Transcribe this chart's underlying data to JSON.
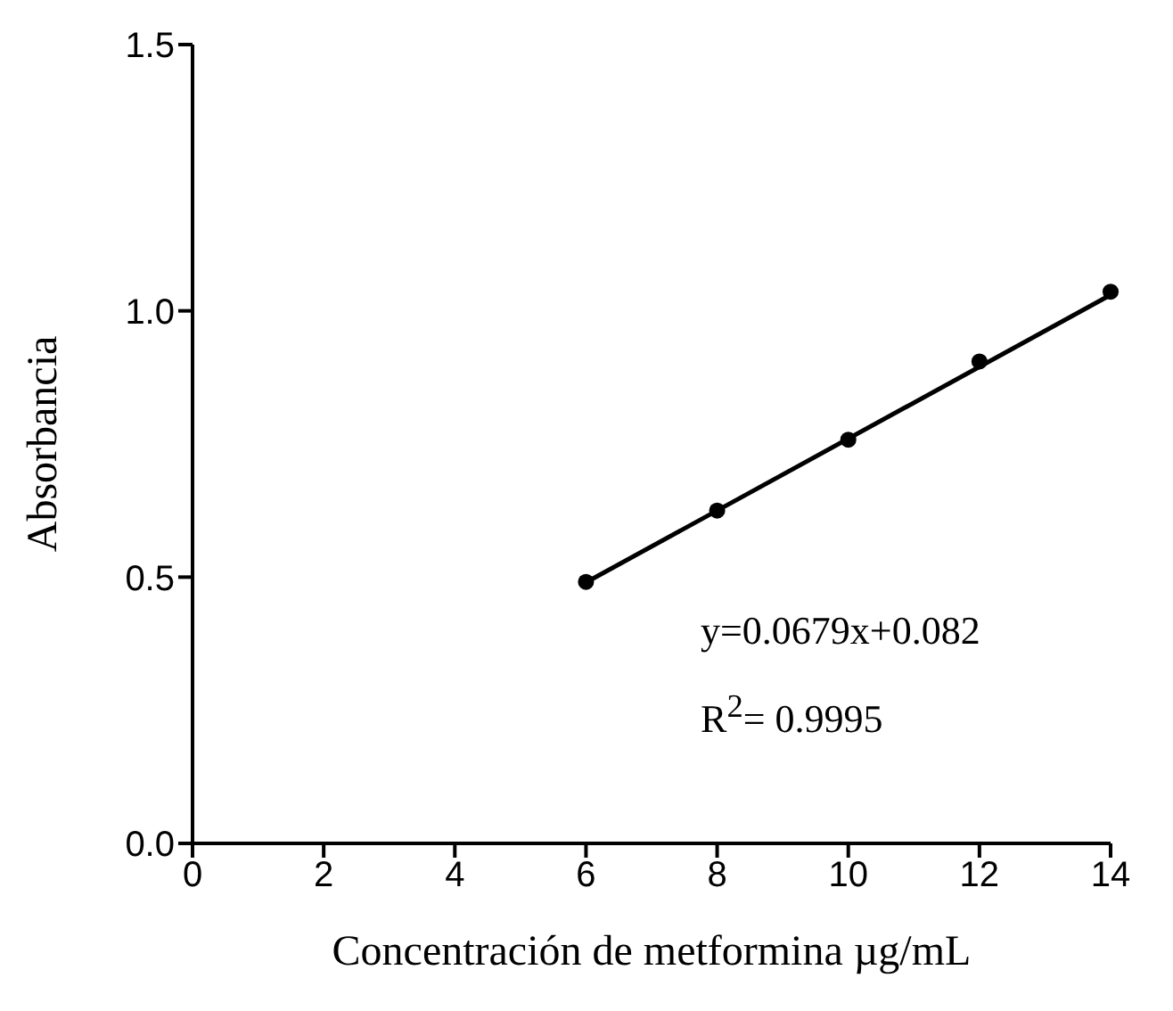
{
  "chart_data": {
    "type": "scatter",
    "xlabel": "Concentración de metformina µg/mL",
    "ylabel": "Absorbancia",
    "x": [
      6,
      8,
      10,
      12,
      14
    ],
    "series": [
      {
        "color": "#000000",
        "values": [
          0.491,
          0.625,
          0.758,
          0.905,
          1.036
        ],
        "marker": "circle"
      },
      {
        "type": "line",
        "color": "#000000",
        "x": [
          6,
          14
        ],
        "values": [
          0.49,
          1.03
        ],
        "marker": "none",
        "line_style": "solid"
      }
    ],
    "xlim": [
      0,
      14
    ],
    "xticks": [
      0,
      2,
      4,
      6,
      8,
      10,
      12,
      14
    ],
    "ylim": [
      0,
      1.5
    ],
    "yticks": [
      {
        "value": 0,
        "label": "0.0"
      },
      {
        "value": 0.5,
        "label": "0.5"
      },
      {
        "value": 1,
        "label": "1.0"
      },
      {
        "value": 1.5,
        "label": "1.5"
      }
    ],
    "annotations": [
      "y=0.0679x+0.082",
      "R$^{2}$= 0.9995"
    ]
  }
}
